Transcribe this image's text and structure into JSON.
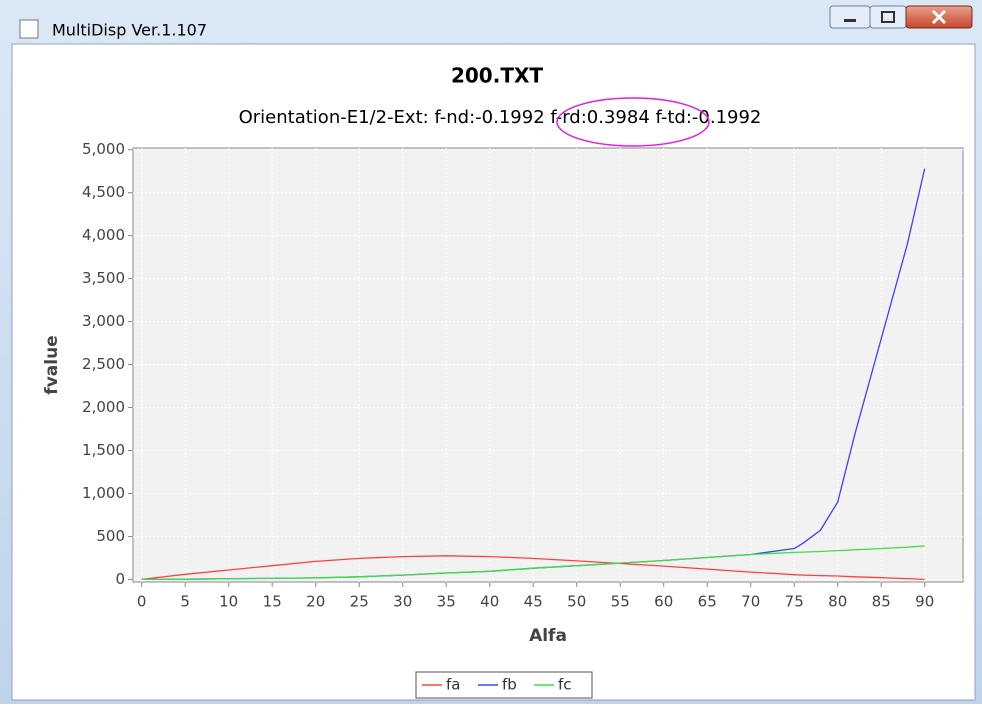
{
  "window": {
    "title": "MultiDisp Ver.1.107"
  },
  "chart_data": {
    "type": "line",
    "title": "200.TXT",
    "subtitle": "Orientation-E1/2-Ext: f-nd:-0.1992 f-rd:0.3984 f-td:-0.1992",
    "xlabel": "Alfa",
    "ylabel": "fvalue",
    "x": [
      0,
      5,
      10,
      15,
      20,
      25,
      30,
      35,
      40,
      45,
      50,
      55,
      60,
      65,
      70,
      75,
      76,
      78,
      80,
      82,
      85,
      88,
      90
    ],
    "series": [
      {
        "name": "fa",
        "color": "#ff4040",
        "values": [
          0,
          60,
          110,
          160,
          210,
          245,
          265,
          275,
          265,
          245,
          215,
          185,
          155,
          120,
          85,
          55,
          50,
          45,
          40,
          30,
          20,
          10,
          0
        ]
      },
      {
        "name": "fb",
        "color": "#4040ff",
        "values": [
          0,
          3,
          8,
          12,
          18,
          30,
          50,
          75,
          95,
          130,
          160,
          190,
          220,
          255,
          290,
          360,
          420,
          570,
          900,
          1700,
          2800,
          3900,
          4780
        ]
      },
      {
        "name": "fc",
        "color": "#40e040",
        "values": [
          0,
          3,
          8,
          12,
          18,
          30,
          50,
          75,
          95,
          130,
          160,
          190,
          220,
          255,
          290,
          315,
          318,
          325,
          335,
          345,
          360,
          375,
          390
        ]
      }
    ],
    "xlim": [
      -1,
      94.4
    ],
    "ylim": [
      -30,
      5020
    ],
    "xticks": [
      0,
      5,
      10,
      15,
      20,
      25,
      30,
      35,
      40,
      45,
      50,
      55,
      60,
      65,
      70,
      75,
      80,
      85,
      90
    ],
    "yticks": [
      0,
      {
        "value": 500,
        "label": "500"
      },
      {
        "value": 1000,
        "label": "1,000"
      },
      {
        "value": 1500,
        "label": "1,500"
      },
      {
        "value": 2000,
        "label": "2,000"
      },
      {
        "value": 2500,
        "label": "2,500"
      },
      {
        "value": 3000,
        "label": "3,000"
      },
      {
        "value": 3500,
        "label": "3,500"
      },
      {
        "value": 4000,
        "label": "4,000"
      },
      {
        "value": 4500,
        "label": "4,500"
      },
      {
        "value": 5000,
        "label": "5,000"
      }
    ],
    "grid": true,
    "legend": "bottom"
  }
}
